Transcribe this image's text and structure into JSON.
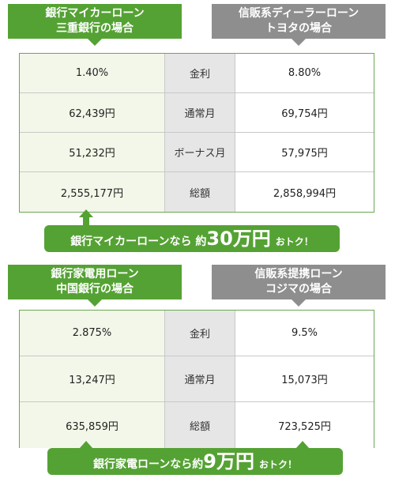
{
  "sections": [
    {
      "bank_header": [
        "銀行マイカーローン",
        "三重銀行の場合"
      ],
      "dealer_header": [
        "信販系ディーラーローン",
        "トヨタの場合"
      ],
      "rows": [
        {
          "bank": "1.40%",
          "label": "金利",
          "dealer": "8.80%"
        },
        {
          "bank": "62,439円",
          "label": "通常月",
          "dealer": "69,754円"
        },
        {
          "bank": "51,232円",
          "label": "ボーナス月",
          "dealer": "57,975円"
        },
        {
          "bank": "2,555,177円",
          "label": "総額",
          "dealer": "2,858,994円"
        }
      ],
      "banner": {
        "pre": "銀行マイカーローンなら 約",
        "amount": "30万円",
        "post": "おトク！"
      }
    },
    {
      "bank_header": [
        "銀行家電用ローン",
        "中国銀行の場合"
      ],
      "dealer_header": [
        "信販系提携ローン",
        "コジマの場合"
      ],
      "rows": [
        {
          "bank": "2.875%",
          "label": "金利",
          "dealer": "9.5%"
        },
        {
          "bank": "13,247円",
          "label": "通常月",
          "dealer": "15,073円"
        },
        {
          "bank": "635,859円",
          "label": "総額",
          "dealer": "723,525円"
        }
      ],
      "banner": {
        "pre": "銀行家電ローンなら約",
        "amount": "9万円",
        "post": "おトク！"
      }
    }
  ],
  "colors": {
    "accent": "#55a234",
    "gray": "#8e8e8e",
    "bank_cell": "#f3f7e9",
    "label_cell": "#e6e6e6"
  }
}
